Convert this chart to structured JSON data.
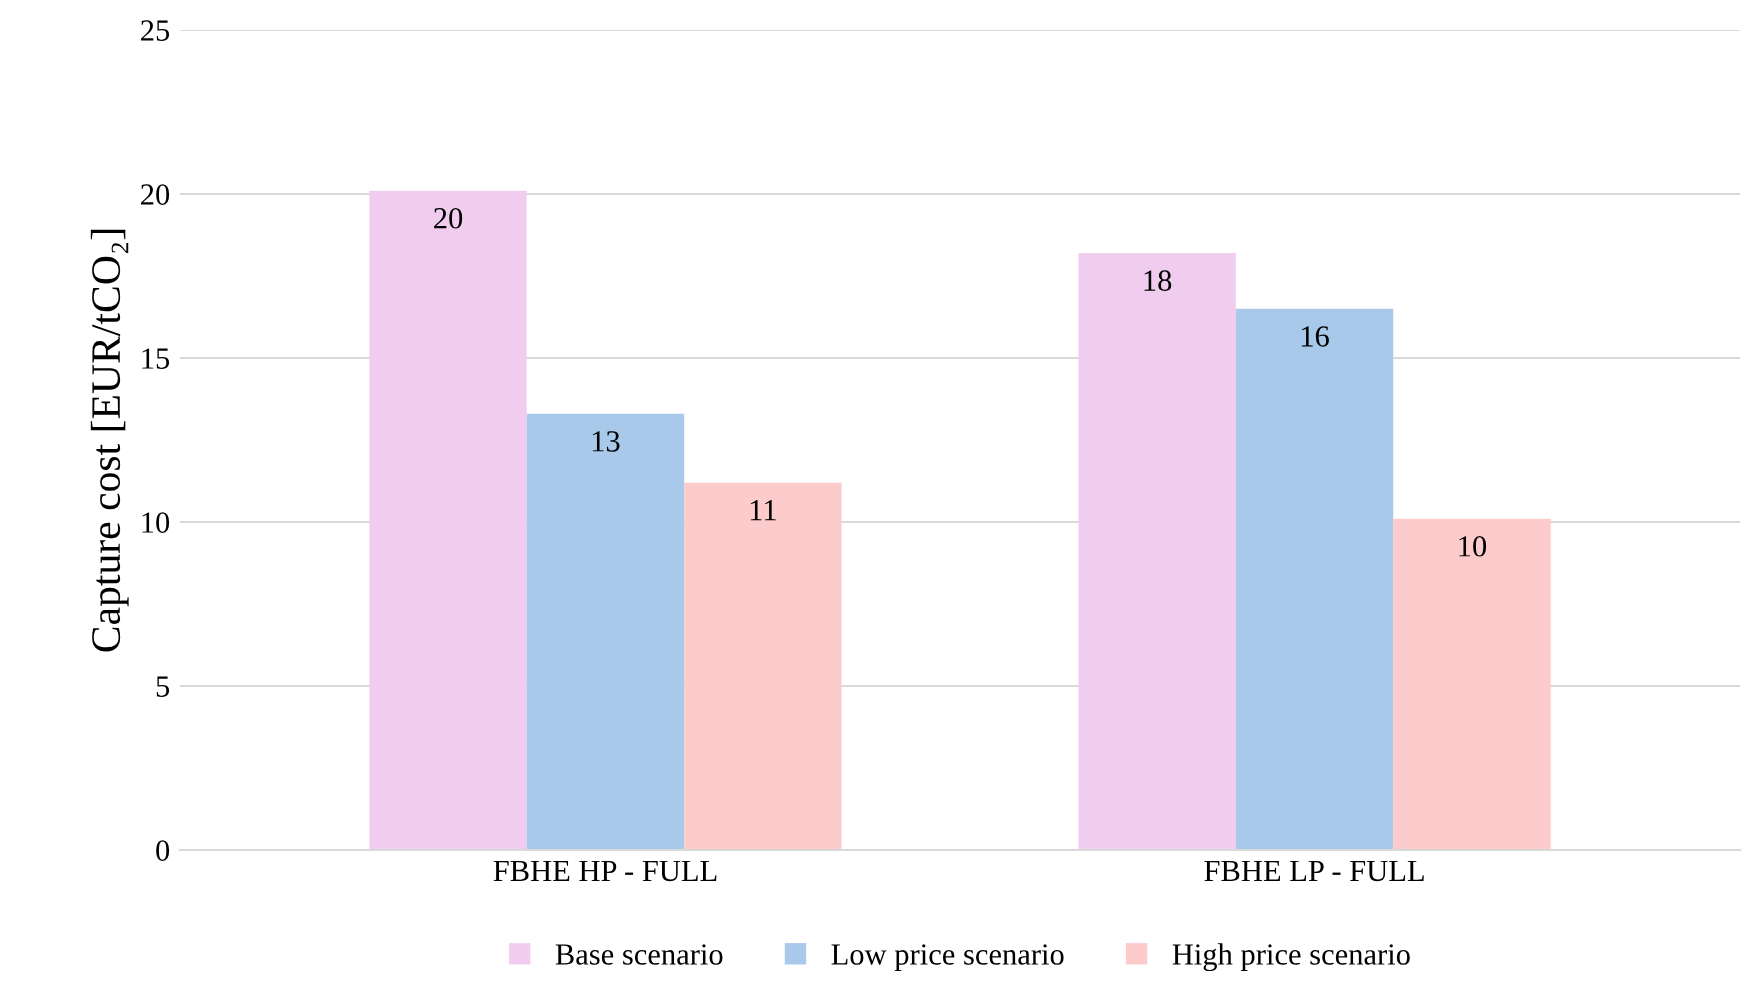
{
  "chart_data": {
    "type": "bar",
    "ylabel": "Capture cost [EUR/tCO₂]",
    "categories": [
      "FBHE HP - FULL",
      "FBHE LP - FULL"
    ],
    "series": [
      {
        "name": "Base scenario",
        "color": "#f0cdee",
        "values": [
          20.1,
          18.2
        ],
        "value_labels": [
          "20",
          "18"
        ]
      },
      {
        "name": "Low price scenario",
        "color": "#a8c9ea",
        "values": [
          13.3,
          16.5
        ],
        "value_labels": [
          "13",
          "16"
        ]
      },
      {
        "name": "High price scenario",
        "color": "#fccbcb",
        "values": [
          11.2,
          10.1
        ],
        "value_labels": [
          "11",
          "10"
        ]
      }
    ],
    "ylim": [
      0,
      25
    ],
    "yticks": [
      0,
      5,
      10,
      15,
      20,
      25
    ],
    "grid": "y",
    "legend": "bottom"
  }
}
